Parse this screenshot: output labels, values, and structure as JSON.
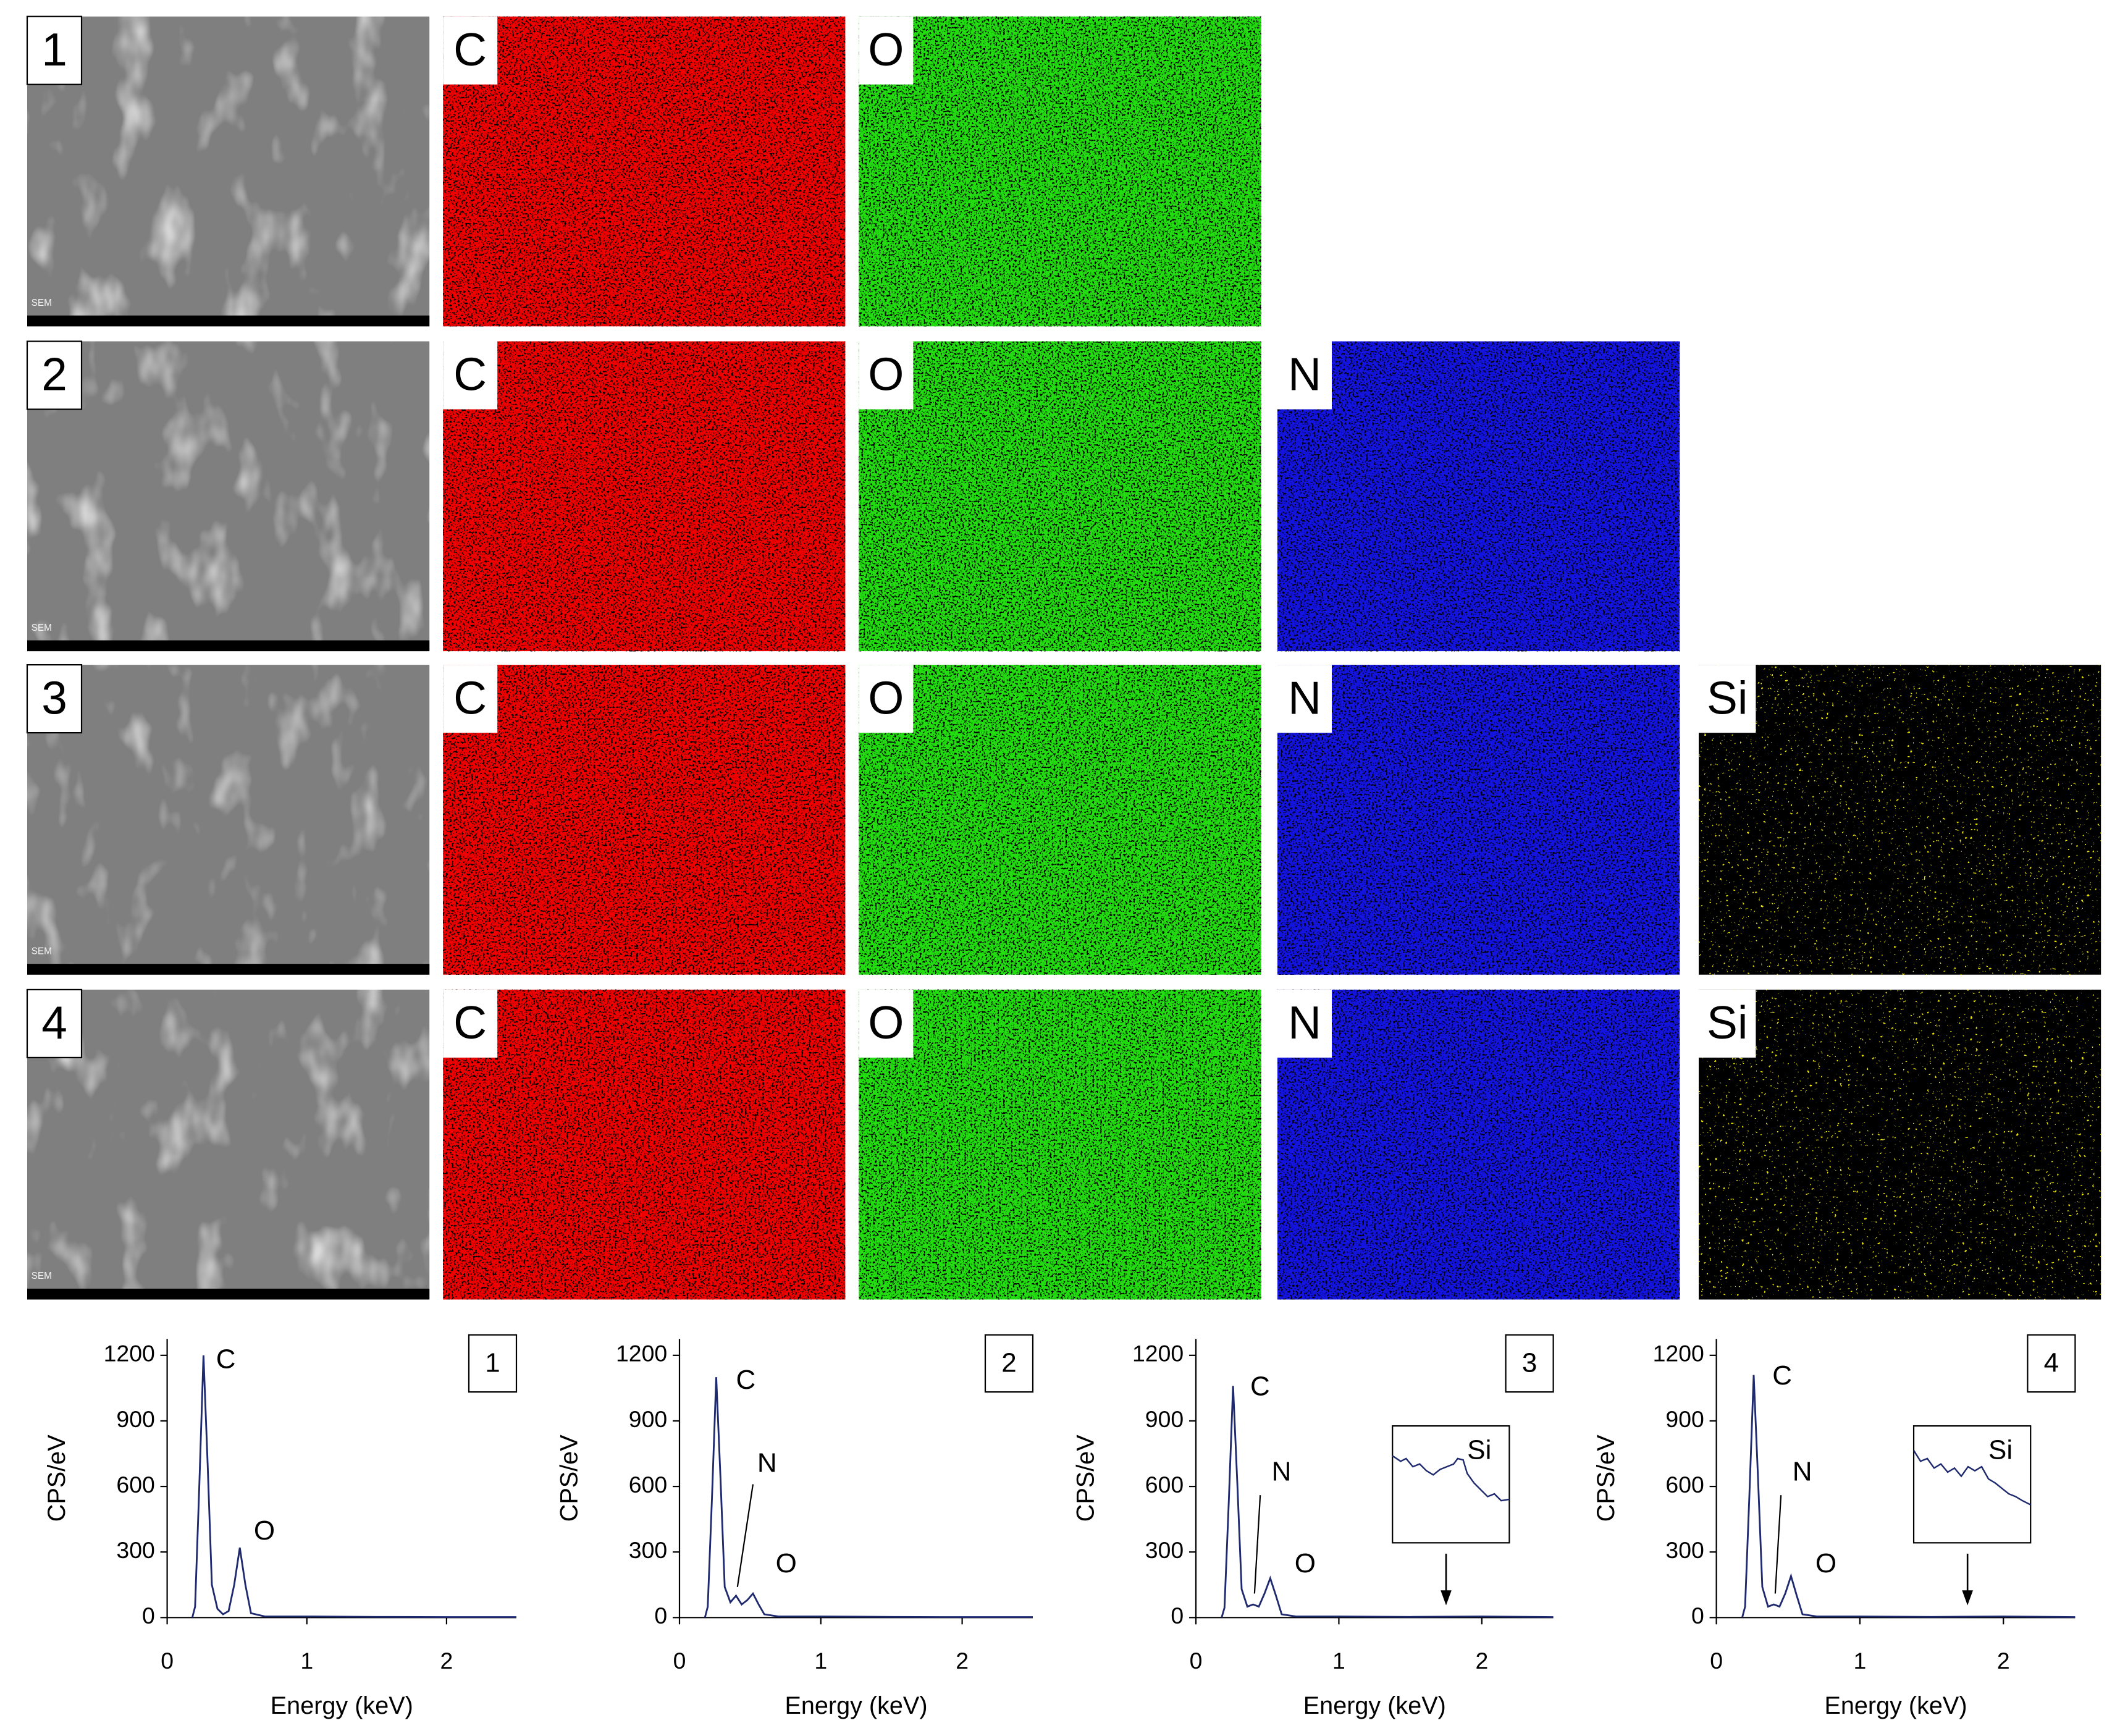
{
  "panels": [
    {
      "label": "1",
      "sem_label": "SEM",
      "maps": [
        {
          "label": "C",
          "color": "#f00000",
          "dot_color": "#000000"
        },
        {
          "label": "O",
          "color": "#22dd10",
          "dot_color": "#000000"
        }
      ]
    },
    {
      "label": "2",
      "sem_label": "SEM",
      "maps": [
        {
          "label": "C",
          "color": "#f00000",
          "dot_color": "#000000"
        },
        {
          "label": "O",
          "color": "#22dd10",
          "dot_color": "#000000"
        },
        {
          "label": "N",
          "color": "#1414e0",
          "dot_color": "#000000"
        }
      ]
    },
    {
      "label": "3",
      "sem_label": "SEM",
      "maps": [
        {
          "label": "C",
          "color": "#f00000",
          "dot_color": "#000000"
        },
        {
          "label": "O",
          "color": "#22dd10",
          "dot_color": "#000000"
        },
        {
          "label": "N",
          "color": "#1414e0",
          "dot_color": "#000000"
        },
        {
          "label": "Si",
          "color": "#000000",
          "dot_color": "#e8e000"
        }
      ]
    },
    {
      "label": "4",
      "sem_label": "SEM",
      "maps": [
        {
          "label": "C",
          "color": "#f00000",
          "dot_color": "#000000"
        },
        {
          "label": "O",
          "color": "#22dd10",
          "dot_color": "#000000"
        },
        {
          "label": "N",
          "color": "#1414e0",
          "dot_color": "#000000"
        },
        {
          "label": "Si",
          "color": "#000000",
          "dot_color": "#e8e000"
        }
      ]
    }
  ],
  "chart_data": [
    {
      "type": "line",
      "panel_label": "1",
      "xlabel": "Energy (keV)",
      "ylabel": "CPS/eV",
      "color": "#1f2a6e",
      "x": [
        0.18,
        0.2,
        0.23,
        0.26,
        0.29,
        0.32,
        0.36,
        0.4,
        0.44,
        0.48,
        0.52,
        0.56,
        0.6,
        0.7,
        1.0,
        1.5,
        2.0,
        2.5
      ],
      "values": [
        0,
        50,
        600,
        1200,
        700,
        150,
        40,
        15,
        30,
        150,
        320,
        150,
        20,
        5,
        5,
        3,
        2,
        2
      ],
      "xlim": [
        0,
        2.5
      ],
      "xticks": [
        0,
        1,
        2
      ],
      "ylim": [
        0,
        1275
      ],
      "yticks": [
        0,
        300,
        600,
        900,
        1200
      ],
      "peak_labels": [
        "C",
        "O"
      ]
    },
    {
      "type": "line",
      "panel_label": "2",
      "xlabel": "Energy (keV)",
      "ylabel": "CPS/eV",
      "color": "#1f2a6e",
      "x": [
        0.18,
        0.2,
        0.23,
        0.26,
        0.29,
        0.32,
        0.36,
        0.4,
        0.44,
        0.48,
        0.52,
        0.56,
        0.6,
        0.7,
        1.0,
        1.5,
        2.0,
        2.5
      ],
      "values": [
        0,
        50,
        550,
        1100,
        640,
        140,
        70,
        100,
        60,
        80,
        110,
        60,
        15,
        5,
        5,
        3,
        2,
        2
      ],
      "xlim": [
        0,
        2.5
      ],
      "xticks": [
        0,
        1,
        2
      ],
      "ylim": [
        0,
        1275
      ],
      "yticks": [
        0,
        300,
        600,
        900,
        1200
      ],
      "peak_labels": [
        "C",
        "N",
        "O"
      ]
    },
    {
      "type": "line",
      "panel_label": "3",
      "xlabel": "Energy (keV)",
      "ylabel": "CPS/eV",
      "color": "#1f2a6e",
      "x": [
        0.18,
        0.2,
        0.23,
        0.26,
        0.29,
        0.32,
        0.36,
        0.4,
        0.44,
        0.48,
        0.52,
        0.56,
        0.6,
        0.7,
        1.0,
        1.5,
        2.0,
        2.5
      ],
      "values": [
        0,
        45,
        530,
        1060,
        610,
        130,
        50,
        60,
        50,
        110,
        180,
        100,
        15,
        5,
        5,
        3,
        5,
        2
      ],
      "xlim": [
        0,
        2.5
      ],
      "xticks": [
        0,
        1,
        2
      ],
      "ylim": [
        0,
        1275
      ],
      "yticks": [
        0,
        300,
        600,
        900,
        1200
      ],
      "peak_labels": [
        "C",
        "N",
        "O"
      ],
      "inset_label": "Si"
    },
    {
      "type": "line",
      "panel_label": "4",
      "xlabel": "Energy (keV)",
      "ylabel": "CPS/eV",
      "color": "#1f2a6e",
      "x": [
        0.18,
        0.2,
        0.23,
        0.26,
        0.29,
        0.32,
        0.36,
        0.4,
        0.44,
        0.48,
        0.52,
        0.56,
        0.6,
        0.7,
        1.0,
        1.5,
        2.0,
        2.5
      ],
      "values": [
        0,
        50,
        560,
        1110,
        640,
        140,
        50,
        60,
        50,
        110,
        190,
        100,
        15,
        5,
        5,
        3,
        5,
        2
      ],
      "xlim": [
        0,
        2.5
      ],
      "xticks": [
        0,
        1,
        2
      ],
      "ylim": [
        0,
        1275
      ],
      "yticks": [
        0,
        300,
        600,
        900,
        1200
      ],
      "peak_labels": [
        "C",
        "N",
        "O"
      ],
      "inset_label": "Si"
    }
  ]
}
